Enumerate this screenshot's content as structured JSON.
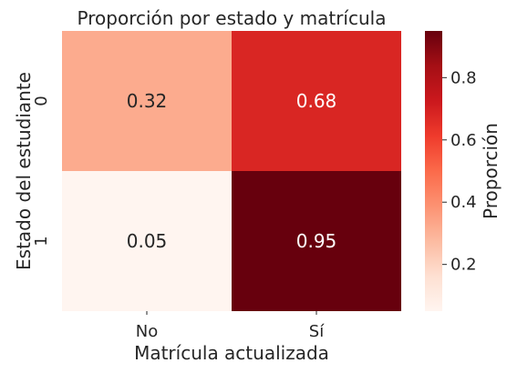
{
  "chart_data": {
    "type": "heatmap",
    "title": "Proporción por estado y matrícula",
    "xlabel": "Matrícula actualizada",
    "ylabel": "Estado del estudiante",
    "x_categories": [
      "No",
      "Sí"
    ],
    "y_categories": [
      "0",
      "1"
    ],
    "values": [
      [
        0.32,
        0.68
      ],
      [
        0.05,
        0.95
      ]
    ],
    "cell_labels": [
      [
        "0.32",
        "0.68"
      ],
      [
        "0.05",
        "0.95"
      ]
    ],
    "colormap": "Reds",
    "vmin": 0.05,
    "vmax": 0.95,
    "colorbar": {
      "label": "Proporción",
      "ticks": [
        0.2,
        0.4,
        0.6,
        0.8
      ],
      "tick_labels": [
        "0.2",
        "0.4",
        "0.6",
        "0.8"
      ]
    },
    "colors": {
      "dark_cell_text": "#262626",
      "light_cell_text": "#ffffff",
      "text": "#262626"
    }
  }
}
